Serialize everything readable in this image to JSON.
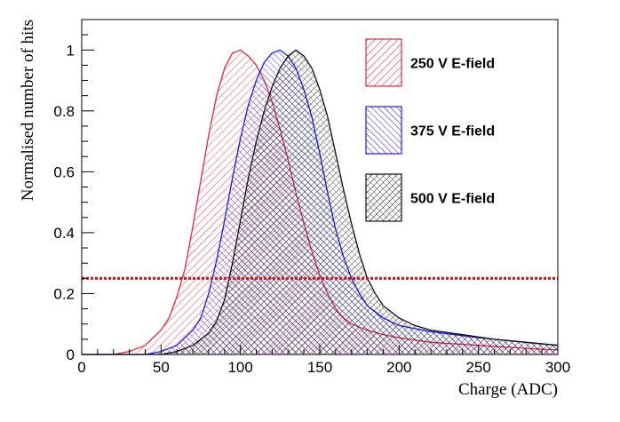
{
  "chart_data": {
    "type": "area",
    "title": "",
    "xlabel": "Charge (ADC)",
    "ylabel": "Normalised number of hits",
    "xlim": [
      0,
      300
    ],
    "ylim": [
      0,
      1.1
    ],
    "x_ticks": [
      0,
      50,
      100,
      150,
      200,
      250,
      300
    ],
    "y_ticks": [
      0,
      0.2,
      0.4,
      0.6,
      0.8,
      1
    ],
    "grid": false,
    "legend_placement": "top-right",
    "threshold_line": {
      "y": 0.25,
      "color": "#dd1111",
      "style": "dotted"
    },
    "series": [
      {
        "name": "250 V E-field",
        "color": "#e8273a",
        "x": [
          0,
          20,
          30,
          40,
          50,
          55,
          60,
          65,
          70,
          75,
          80,
          85,
          90,
          95,
          100,
          105,
          110,
          115,
          120,
          125,
          130,
          135,
          140,
          145,
          150,
          155,
          160,
          165,
          170,
          175,
          180,
          190,
          200,
          220,
          250,
          280,
          300
        ],
        "values": [
          0,
          0,
          0.01,
          0.03,
          0.08,
          0.12,
          0.19,
          0.28,
          0.42,
          0.57,
          0.72,
          0.85,
          0.94,
          0.99,
          1.0,
          0.98,
          0.95,
          0.9,
          0.83,
          0.74,
          0.64,
          0.53,
          0.43,
          0.34,
          0.26,
          0.2,
          0.15,
          0.12,
          0.1,
          0.09,
          0.08,
          0.065,
          0.055,
          0.04,
          0.03,
          0.02,
          0.015
        ]
      },
      {
        "name": "375 V E-field",
        "color": "#1a1aee",
        "x": [
          0,
          40,
          50,
          60,
          70,
          75,
          80,
          85,
          90,
          95,
          100,
          105,
          110,
          115,
          120,
          125,
          130,
          135,
          140,
          145,
          150,
          155,
          160,
          165,
          170,
          175,
          180,
          190,
          200,
          220,
          250,
          280,
          300
        ],
        "values": [
          0,
          0,
          0.01,
          0.03,
          0.08,
          0.12,
          0.2,
          0.31,
          0.44,
          0.58,
          0.71,
          0.82,
          0.9,
          0.96,
          0.99,
          1.0,
          0.98,
          0.94,
          0.87,
          0.78,
          0.66,
          0.53,
          0.41,
          0.32,
          0.25,
          0.2,
          0.16,
          0.12,
          0.095,
          0.075,
          0.055,
          0.04,
          0.03
        ]
      },
      {
        "name": "500 V E-field",
        "color": "#111111",
        "x": [
          0,
          50,
          60,
          70,
          80,
          85,
          90,
          95,
          100,
          105,
          110,
          115,
          120,
          125,
          130,
          135,
          140,
          145,
          150,
          155,
          160,
          165,
          170,
          175,
          180,
          185,
          190,
          200,
          210,
          220,
          240,
          260,
          280,
          300
        ],
        "values": [
          0,
          0,
          0.01,
          0.03,
          0.07,
          0.11,
          0.18,
          0.3,
          0.44,
          0.58,
          0.7,
          0.8,
          0.88,
          0.94,
          0.98,
          1.0,
          0.98,
          0.94,
          0.87,
          0.78,
          0.66,
          0.54,
          0.43,
          0.33,
          0.25,
          0.2,
          0.16,
          0.12,
          0.095,
          0.08,
          0.065,
          0.05,
          0.04,
          0.03
        ]
      }
    ]
  }
}
